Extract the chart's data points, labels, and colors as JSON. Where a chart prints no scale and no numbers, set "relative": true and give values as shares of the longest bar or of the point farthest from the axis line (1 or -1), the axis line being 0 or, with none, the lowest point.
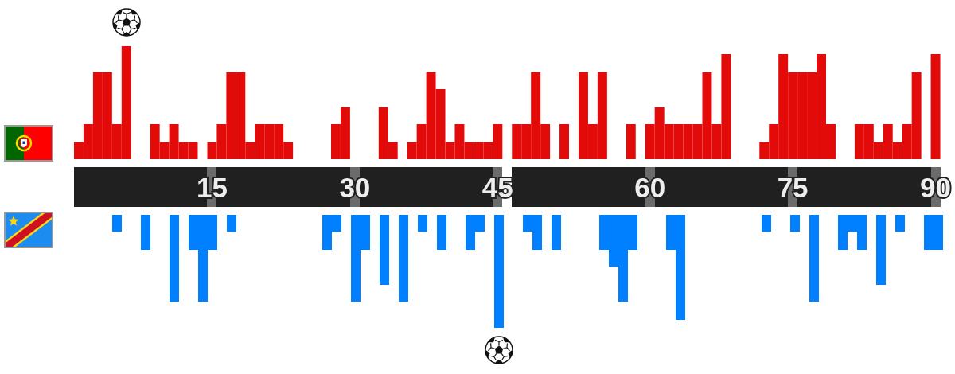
{
  "chart_data": [
    {
      "type": "bar",
      "relative": true,
      "categories": [
        null,
        null,
        null,
        null,
        null,
        null,
        null,
        null,
        null,
        null,
        null,
        null,
        null,
        null,
        "15",
        null,
        null,
        null,
        null,
        null,
        null,
        null,
        null,
        null,
        null,
        null,
        null,
        null,
        null,
        "30",
        null,
        null,
        null,
        null,
        null,
        null,
        null,
        null,
        null,
        null,
        null,
        null,
        null,
        null,
        "45",
        null,
        null,
        null,
        null,
        null,
        null,
        null,
        null,
        null,
        null,
        null,
        null,
        null,
        null,
        null,
        "60",
        null,
        null,
        null,
        null,
        null,
        null,
        null,
        null,
        null,
        null,
        null,
        null,
        null,
        null,
        "75",
        null,
        null,
        null,
        null,
        null,
        null,
        null,
        null,
        null,
        null,
        null,
        null,
        null,
        null,
        "90"
      ],
      "series": [
        {
          "color": "#e30a0a",
          "values": [
            0.15,
            0.31,
            0.77,
            0.77,
            0.31,
            1,
            0,
            0,
            0.31,
            0.15,
            0.31,
            0.15,
            0.15,
            0,
            0.15,
            0.31,
            0.77,
            0.77,
            0.15,
            0.31,
            0.31,
            0.31,
            0.15,
            0,
            0,
            0,
            0,
            0.31,
            0.46,
            0,
            0,
            0,
            0.46,
            0.15,
            0,
            0.15,
            0.31,
            0.77,
            0.62,
            0.15,
            0.31,
            0.15,
            0.15,
            0.15,
            0.31,
            null,
            0.31,
            0.31,
            0.77,
            0.31,
            0,
            0.31,
            0,
            0.77,
            0.31,
            0.77,
            0,
            0,
            0.31,
            0,
            0.31,
            0.46,
            0.31,
            0.31,
            0.31,
            0.31,
            0.77,
            0.31,
            0.93,
            0,
            0,
            0,
            0.15,
            0.31,
            0.93,
            0.77,
            0.77,
            0.77,
            0.93,
            0.31,
            0,
            0,
            0.31,
            0.31,
            0.15,
            0.31,
            0.15,
            0.31,
            0.77,
            0,
            0.93
          ]
        }
      ]
    },
    {
      "type": "bar",
      "relative": true,
      "tick_labels": false,
      "categories": [
        null,
        null,
        null,
        null,
        null,
        null,
        null,
        null,
        null,
        null,
        null,
        null,
        null,
        null,
        "15",
        null,
        null,
        null,
        null,
        null,
        null,
        null,
        null,
        null,
        null,
        null,
        null,
        null,
        null,
        "30",
        null,
        null,
        null,
        null,
        null,
        null,
        null,
        null,
        null,
        null,
        null,
        null,
        null,
        null,
        "45",
        null,
        null,
        null,
        null,
        null,
        null,
        null,
        null,
        null,
        null,
        null,
        null,
        null,
        null,
        null,
        "60",
        null,
        null,
        null,
        null,
        null,
        null,
        null,
        null,
        null,
        null,
        null,
        null,
        null,
        null,
        "75",
        null,
        null,
        null,
        null,
        null,
        null,
        null,
        null,
        null,
        null,
        null,
        null,
        null,
        null,
        "90"
      ],
      "series": [
        {
          "color": "#007fff",
          "values": [
            0,
            0,
            0,
            0,
            -0.15,
            0,
            0,
            -0.31,
            0,
            0,
            -0.77,
            0,
            -0.31,
            -0.77,
            -0.31,
            0,
            -0.15,
            0,
            0,
            0,
            0,
            0,
            0,
            0,
            0,
            0,
            -0.31,
            -0.15,
            0,
            -0.77,
            -0.31,
            0,
            -0.62,
            0,
            -0.77,
            0,
            -0.15,
            0,
            -0.31,
            0,
            0,
            -0.31,
            -0.15,
            0,
            -1,
            null,
            0,
            -0.15,
            -0.31,
            0,
            -0.31,
            0,
            0,
            0,
            0,
            -0.31,
            -0.46,
            -0.77,
            -0.31,
            0,
            0,
            0,
            -0.31,
            -0.93,
            0,
            0,
            0,
            0,
            0,
            0,
            0,
            0,
            -0.15,
            0,
            0,
            -0.15,
            0,
            -0.77,
            0,
            0,
            -0.31,
            -0.15,
            -0.31,
            0,
            -0.62,
            0,
            -0.15,
            0,
            0,
            -0.31,
            -0.31
          ]
        }
      ]
    }
  ]
}
